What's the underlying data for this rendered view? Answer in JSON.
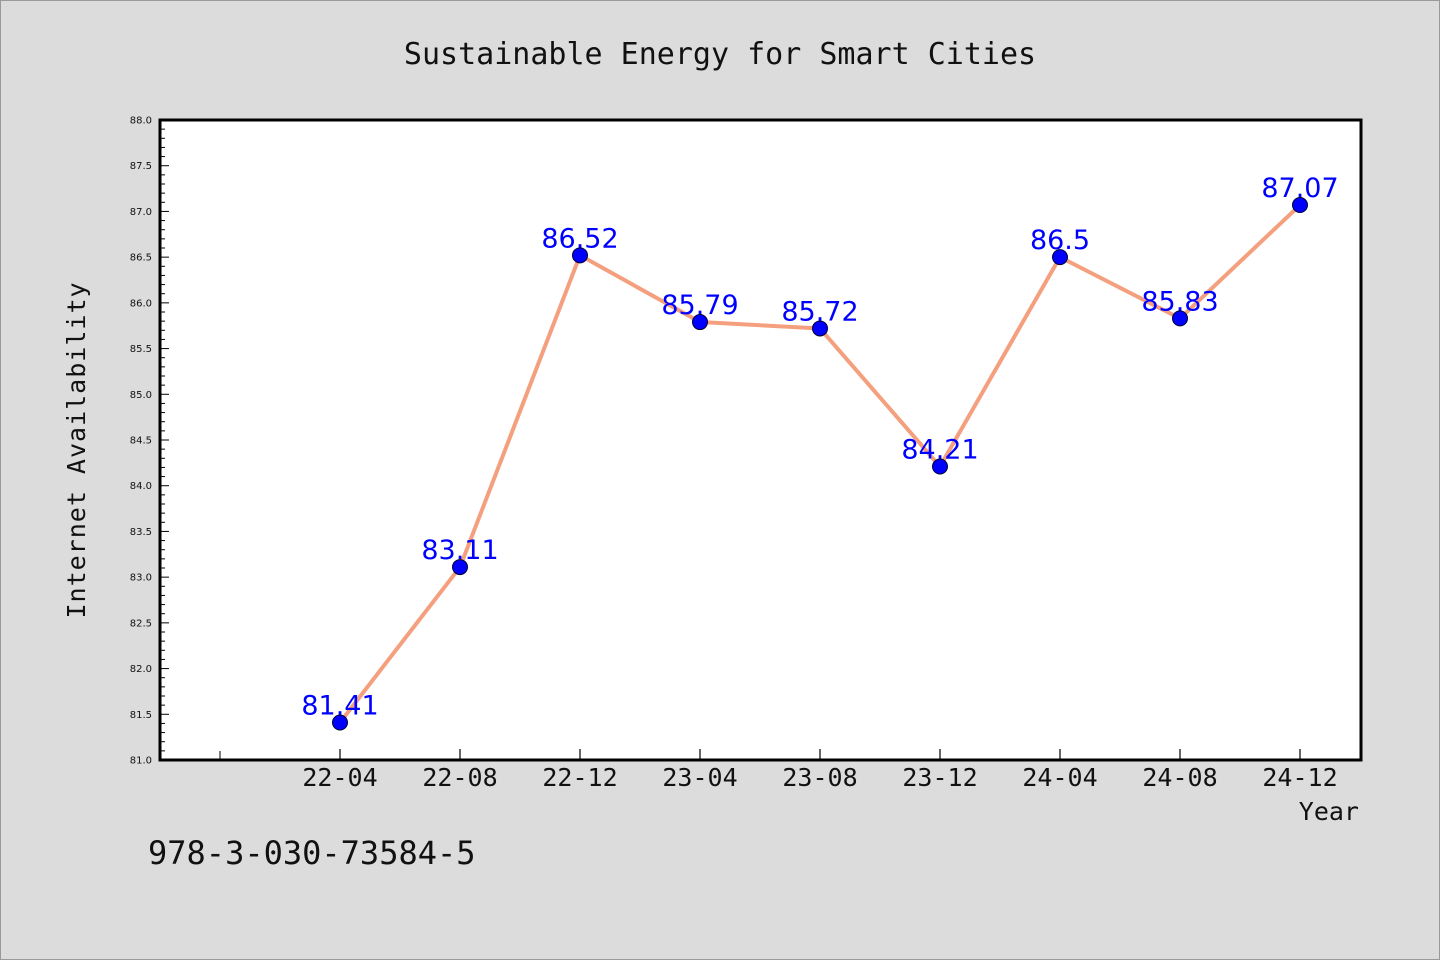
{
  "chart_data": {
    "type": "line",
    "title": "Sustainable Energy for Smart Cities",
    "xlabel": "Year",
    "ylabel": "Internet Availability",
    "categories": [
      "22-04",
      "22-08",
      "22-12",
      "23-04",
      "23-08",
      "23-12",
      "24-04",
      "24-08",
      "24-12"
    ],
    "series": [
      {
        "values": [
          81.41,
          83.11,
          86.52,
          85.79,
          85.72,
          84.21,
          86.5,
          85.83,
          87.07
        ],
        "data_labels": [
          "81.41",
          "83.11",
          "86.52",
          "85.79",
          "85.72",
          "84.21",
          "86.5",
          "85.83",
          "87.07"
        ],
        "line_color": "#f4a07f",
        "marker_color": "#0000ff"
      }
    ],
    "ylim": [
      81.0,
      88.0
    ],
    "yticks": [
      "81.0",
      "81.5",
      "82.0",
      "82.5",
      "83.0",
      "83.5",
      "84.0",
      "84.5",
      "85.0",
      "85.5",
      "86.0",
      "86.5",
      "87.0",
      "87.5",
      "88.0"
    ],
    "grid": false,
    "legend": "none",
    "annotation": "978-3-030-73584-5",
    "colors": {
      "background": "#dcdcdc",
      "plot_background": "#ffffff",
      "data_label": "#0000ff"
    }
  }
}
